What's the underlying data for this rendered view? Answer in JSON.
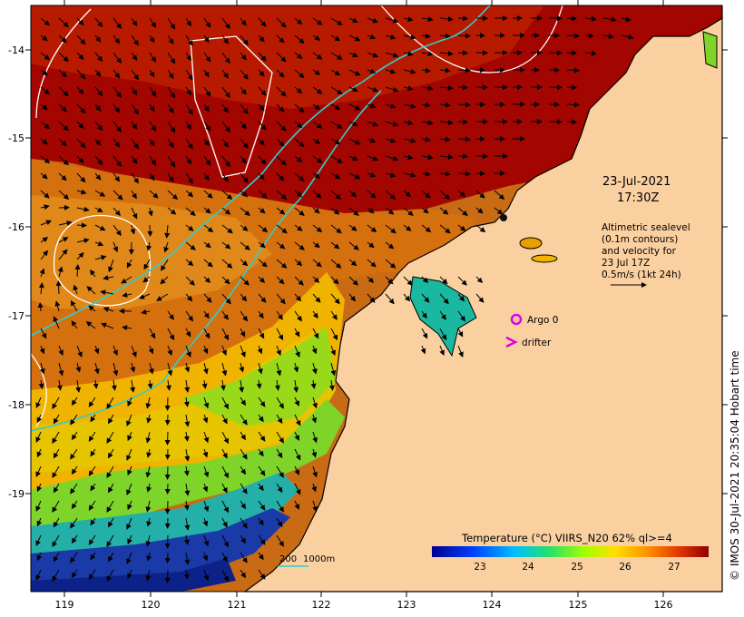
{
  "map": {
    "date": "23-Jul-2021",
    "time": "17:30Z",
    "altimetry_note": [
      "Altimetric sealevel",
      "(0.1m contours)",
      "and velocity for",
      "23 Jul 17Z",
      "0.5m/s (1kt 24h)"
    ],
    "legend": {
      "argo_label": "Argo 0",
      "drifter_label": "drifter",
      "argo_color": "#e000e0",
      "drifter_color": "#e000e0"
    },
    "colorbar": {
      "title": "Temperature (°C) VIIRS_N20 62% ql>=4",
      "ticks": [
        "23",
        "24",
        "25",
        "26",
        "27"
      ]
    },
    "bathymetry": {
      "label_200": "200",
      "label_1000": "1000m",
      "color": "#33cccc"
    },
    "credit": "© IMOS 30-Jul-2021 20:35:04 Hobart time",
    "lon_ticks": [
      "119",
      "120",
      "121",
      "122",
      "123",
      "124",
      "125",
      "126"
    ],
    "lat_ticks": [
      "-14",
      "-15",
      "-16",
      "-17",
      "-18",
      "-19"
    ],
    "colors": {
      "land": "#fbd0a0",
      "coast": "#000000",
      "sst_hot": "#a30000",
      "sst_warm": "#d96a10",
      "sst_mid": "#f2b800",
      "sst_cool": "#55cc33",
      "sst_cold": "#1a3aa8",
      "contour": "#ffffff"
    }
  }
}
